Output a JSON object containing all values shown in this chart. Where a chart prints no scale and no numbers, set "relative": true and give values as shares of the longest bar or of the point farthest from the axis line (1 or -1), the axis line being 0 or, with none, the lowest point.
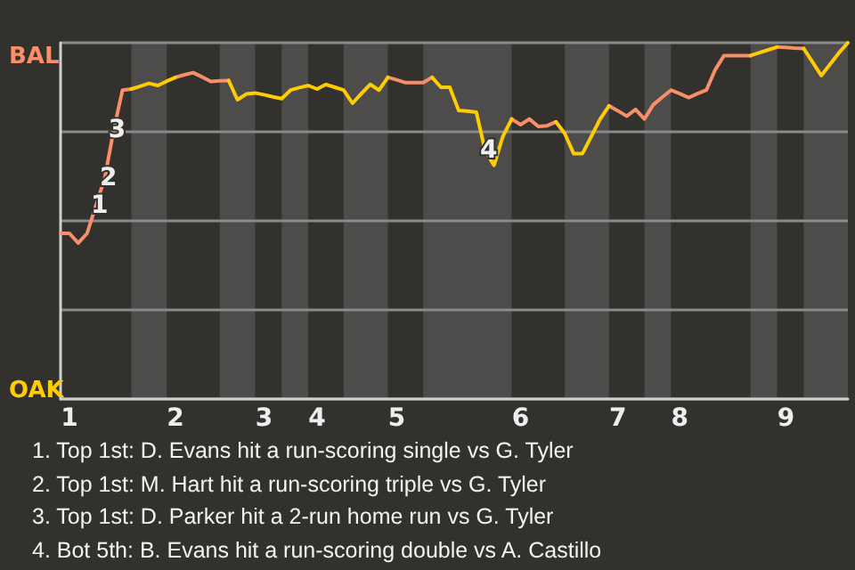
{
  "chart_data": {
    "type": "line",
    "relative": true,
    "categories": [
      null,
      "1",
      null,
      null,
      null,
      null,
      null,
      null,
      null,
      null,
      null,
      null,
      null,
      "2",
      null,
      null,
      null,
      null,
      null,
      null,
      null,
      null,
      null,
      "3",
      null,
      null,
      null,
      null,
      null,
      "4",
      null,
      null,
      null,
      null,
      null,
      null,
      null,
      null,
      "5",
      null,
      null,
      null,
      null,
      null,
      null,
      null,
      null,
      null,
      null,
      null,
      null,
      null,
      "6",
      null,
      null,
      null,
      null,
      null,
      null,
      null,
      null,
      null,
      null,
      "7",
      null,
      null,
      null,
      null,
      null,
      null,
      "8",
      null,
      null,
      null,
      null,
      null,
      null,
      null,
      null,
      null,
      null,
      null,
      "9",
      null,
      null,
      null,
      null,
      null,
      null,
      null
    ],
    "series": [
      {
        "name": "BAL",
        "color": "#f7906a",
        "values": [
          0.465,
          0.465,
          0.438,
          0.465,
          0.543,
          0.621,
          0.754,
          0.867,
          0.87,
          null,
          null,
          null,
          null,
          0.903,
          0.91,
          0.916,
          0.904,
          0.891,
          0.893,
          0.894,
          null,
          null,
          null,
          null,
          null,
          null,
          null,
          null,
          null,
          null,
          null,
          null,
          null,
          null,
          null,
          null,
          null,
          0.903,
          0.896,
          0.888,
          0.888,
          0.888,
          0.903,
          null,
          null,
          null,
          null,
          null,
          null,
          null,
          null,
          0.786,
          0.77,
          0.786,
          0.765,
          0.767,
          0.778,
          null,
          null,
          null,
          null,
          null,
          0.823,
          0.809,
          0.794,
          0.813,
          0.786,
          0.826,
          0.847,
          0.867,
          0.857,
          0.846,
          0.857,
          0.867,
          0.924,
          0.964,
          0.964,
          0.964,
          0.964,
          null,
          null,
          0.988,
          0.987,
          0.985,
          0.984,
          null,
          null,
          null,
          null,
          null
        ]
      },
      {
        "name": "OAK",
        "color": "#ffcc00",
        "values": [
          null,
          null,
          null,
          null,
          null,
          null,
          null,
          null,
          0.87,
          0.878,
          0.886,
          0.88,
          0.892,
          0.903,
          null,
          null,
          null,
          null,
          null,
          0.894,
          0.84,
          0.856,
          0.859,
          0.854,
          0.848,
          0.843,
          0.867,
          0.874,
          0.88,
          0.87,
          0.883,
          0.875,
          0.867,
          0.83,
          0.857,
          0.883,
          0.867,
          0.903,
          null,
          null,
          null,
          null,
          0.903,
          0.875,
          0.875,
          0.81,
          0.808,
          0.805,
          0.697,
          0.656,
          0.737,
          0.786,
          null,
          null,
          null,
          null,
          0.778,
          0.745,
          0.689,
          0.689,
          0.737,
          0.786,
          0.823,
          null,
          null,
          null,
          null,
          null,
          null,
          null,
          null,
          null,
          null,
          null,
          null,
          null,
          null,
          null,
          0.964,
          0.972,
          0.98,
          0.988,
          null,
          null,
          0.984,
          0.946,
          0.908,
          0.94,
          0.972,
          1
        ]
      }
    ],
    "grid": "y",
    "legend": "left",
    "annotations": [
      {
        "text": "1",
        "y": 0.543
      },
      {
        "text": "2",
        "y": 0.621
      },
      {
        "text": "3",
        "y": 0.754
      },
      {
        "text": "4",
        "y": 0.697
      },
      "1. Top 1st: D. Evans hit a run-scoring single vs G. Tyler",
      "2. Top 1st: M. Hart hit a run-scoring triple vs G. Tyler",
      "3. Top 1st: D. Parker hit a 2-run home run vs G. Tyler",
      "4. Bot 5th: B. Evans hit a run-scoring double vs A. Castillo"
    ],
    "marker": "none"
  }
}
